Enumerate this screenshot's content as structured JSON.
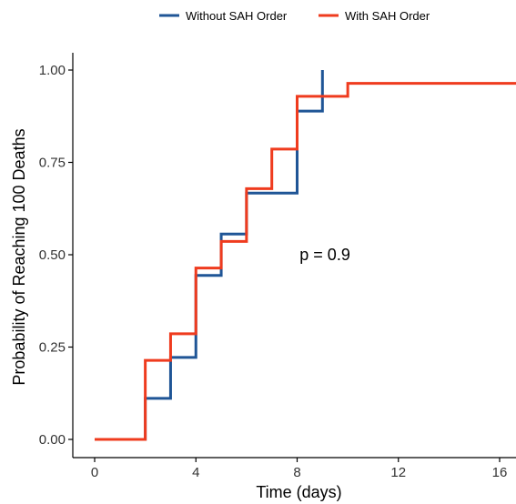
{
  "chart_data": {
    "type": "line",
    "step": true,
    "xlabel": "Time (days)",
    "ylabel": "Probability of Reaching 100 Deaths",
    "xlim": [
      0,
      16.7
    ],
    "ylim": [
      0,
      1
    ],
    "xticks": [
      0,
      4,
      8,
      12,
      16
    ],
    "yticks": [
      0,
      0.25,
      0.5,
      0.75,
      1
    ],
    "ytick_labels": [
      "0.00",
      "0.25",
      "0.50",
      "0.75",
      "1.00"
    ],
    "legend_position": "top",
    "grid": false,
    "annotation": "p = 0.9",
    "annotation_x": 8.1,
    "annotation_y": 0.5,
    "series": [
      {
        "name": "Without SAH Order",
        "color": "#1f5596",
        "x": [
          0,
          2,
          3,
          4,
          5,
          6,
          8,
          9
        ],
        "y": [
          0,
          0.111,
          0.222,
          0.444,
          0.556,
          0.667,
          0.889,
          1.0
        ]
      },
      {
        "name": "With SAH Order",
        "color": "#ef3b1e",
        "x": [
          0,
          2,
          3,
          4,
          5,
          6,
          7,
          8,
          10,
          16.7
        ],
        "y": [
          0,
          0.214,
          0.286,
          0.464,
          0.536,
          0.679,
          0.786,
          0.929,
          0.964,
          0.964
        ]
      }
    ]
  }
}
